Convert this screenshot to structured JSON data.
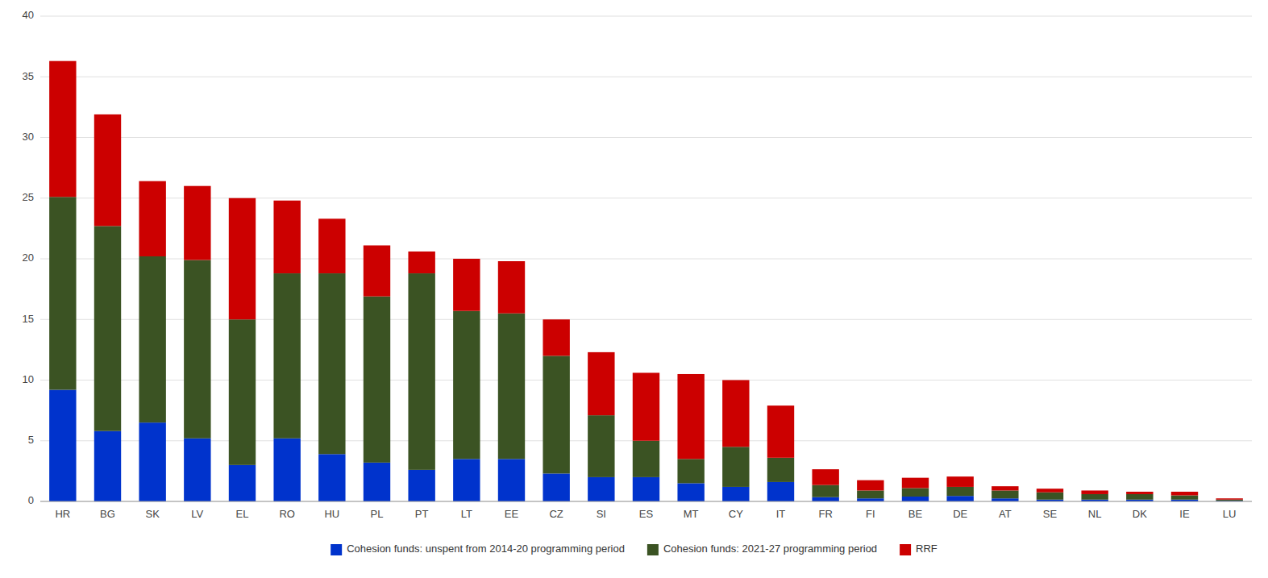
{
  "chart_data": {
    "type": "bar",
    "stacked": true,
    "categories": [
      "HR",
      "BG",
      "SK",
      "LV",
      "EL",
      "RO",
      "HU",
      "PL",
      "PT",
      "LT",
      "EE",
      "CZ",
      "SI",
      "ES",
      "MT",
      "CY",
      "IT",
      "FR",
      "FI",
      "BE",
      "DE",
      "AT",
      "SE",
      "NL",
      "DK",
      "IE",
      "LU"
    ],
    "series": [
      {
        "name": "Cohesion funds: unspent from 2014-20 programming period",
        "color": "#0033CC",
        "values": [
          9.2,
          5.8,
          6.5,
          5.2,
          3.0,
          5.2,
          3.9,
          3.2,
          2.6,
          3.5,
          3.5,
          2.3,
          2.0,
          2.0,
          1.5,
          1.2,
          1.6,
          0.35,
          0.25,
          0.4,
          0.45,
          0.25,
          0.15,
          0.15,
          0.15,
          0.15,
          0.05
        ]
      },
      {
        "name": "Cohesion funds: 2021-27 programming period",
        "color": "#3B5323",
        "values": [
          15.9,
          16.9,
          13.7,
          14.7,
          12.0,
          13.6,
          14.9,
          13.7,
          16.2,
          12.2,
          12.0,
          9.7,
          5.1,
          3.0,
          2.0,
          3.3,
          2.0,
          1.0,
          0.65,
          0.7,
          0.75,
          0.65,
          0.6,
          0.45,
          0.45,
          0.35,
          0.1
        ]
      },
      {
        "name": "RRF",
        "color": "#CC0000",
        "values": [
          11.2,
          9.2,
          6.2,
          6.1,
          10.0,
          6.0,
          4.5,
          4.2,
          1.8,
          4.3,
          4.3,
          3.0,
          5.2,
          5.6,
          7.0,
          5.5,
          4.3,
          1.3,
          0.85,
          0.85,
          0.85,
          0.35,
          0.3,
          0.3,
          0.2,
          0.3,
          0.1
        ]
      }
    ],
    "ylim": [
      0,
      40
    ],
    "yticks": [
      0,
      5,
      10,
      15,
      20,
      25,
      30,
      35,
      40
    ],
    "grid": true,
    "legend": "bottom"
  }
}
